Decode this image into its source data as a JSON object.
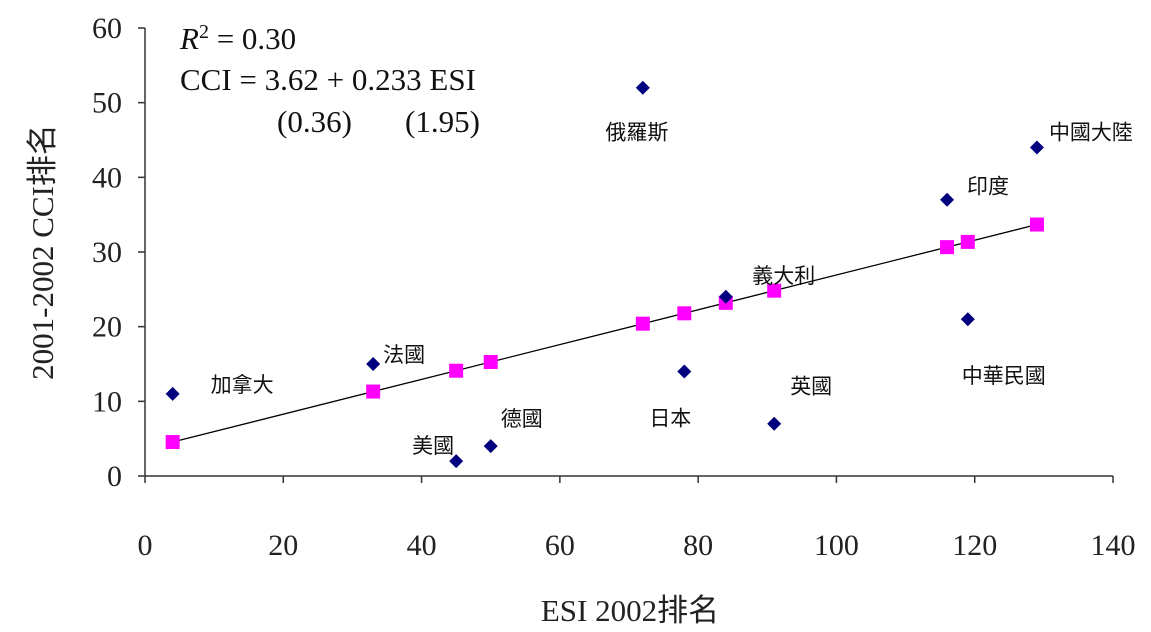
{
  "chart_data": {
    "type": "scatter",
    "xlabel": "ESI 2002排名",
    "ylabel": "2001-2002 CCI排名",
    "xlim": [
      0,
      140
    ],
    "ylim": [
      0,
      60
    ],
    "xticks": [
      0,
      20,
      40,
      60,
      80,
      100,
      120,
      140
    ],
    "yticks": [
      0,
      10,
      20,
      30,
      40,
      50,
      60
    ],
    "grid": false,
    "annotation": {
      "r2": "R² = 0.30",
      "equation": "CCI = 3.62 + 0.233 ESI",
      "se_intercept": "(0.36)",
      "se_slope": "(1.95)"
    },
    "series": [
      {
        "marker": "diamond",
        "color": "#00007f",
        "points": [
          {
            "label": "加拿大",
            "x": 4,
            "y": 11
          },
          {
            "label": "法國",
            "x": 33,
            "y": 15
          },
          {
            "label": "美國",
            "x": 45,
            "y": 2
          },
          {
            "label": "德國",
            "x": 50,
            "y": 4
          },
          {
            "label": "俄羅斯",
            "x": 72,
            "y": 52
          },
          {
            "label": "日本",
            "x": 78,
            "y": 14
          },
          {
            "label": "義大利",
            "x": 84,
            "y": 24
          },
          {
            "label": "英國",
            "x": 91,
            "y": 7
          },
          {
            "label": "印度",
            "x": 116,
            "y": 37
          },
          {
            "label": "中華民國",
            "x": 119,
            "y": 21
          },
          {
            "label": "中國大陸",
            "x": 129,
            "y": 44
          }
        ]
      },
      {
        "marker": "square",
        "color": "#ff00ff",
        "x": [
          4,
          33,
          45,
          50,
          72,
          78,
          84,
          91,
          116,
          119,
          129
        ],
        "y": [
          4.55,
          11.31,
          14.1,
          15.27,
          20.4,
          21.79,
          23.19,
          24.82,
          30.65,
          31.35,
          33.68
        ]
      }
    ],
    "fit_line": {
      "x": [
        4,
        129
      ],
      "y": [
        4.55,
        33.68
      ],
      "color": "#000000"
    }
  }
}
